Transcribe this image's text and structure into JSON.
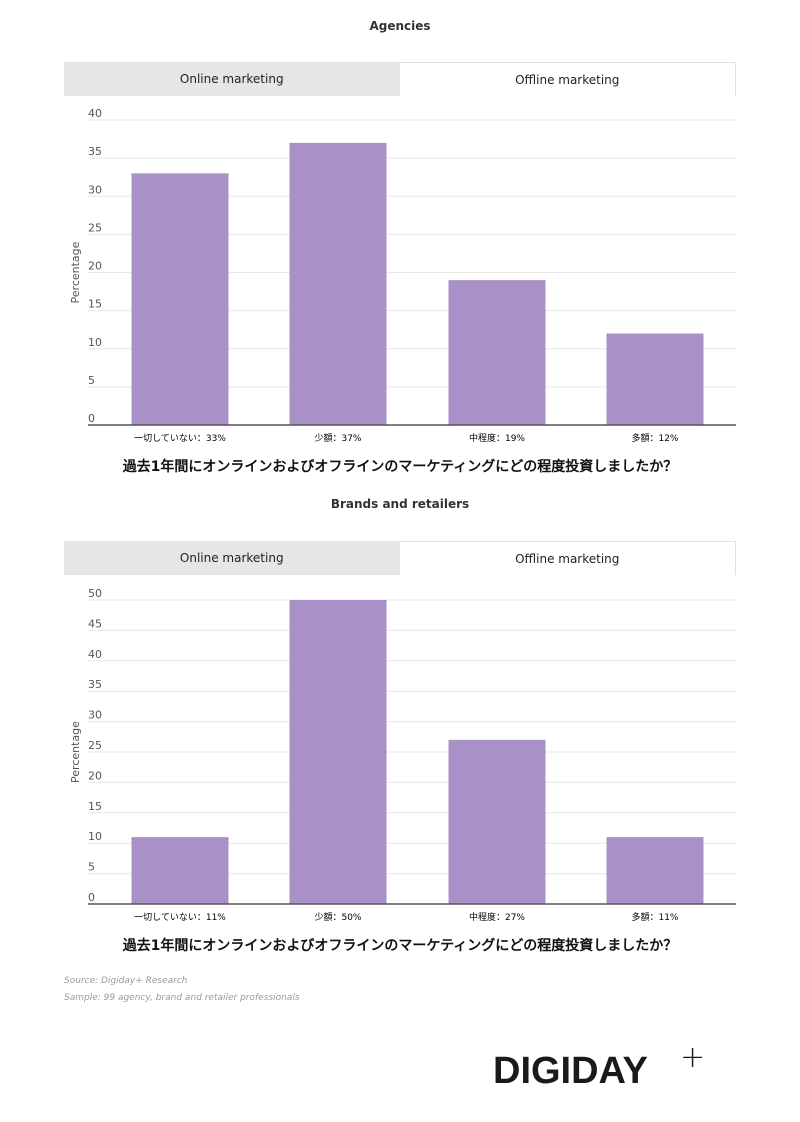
{
  "chart_data": [
    {
      "type": "bar",
      "title": "Agencies",
      "tabs": [
        "Online marketing",
        "Offline marketing"
      ],
      "active_tab": "Offline marketing",
      "categories": [
        "一切していない：33%",
        "少額：37%",
        "中程度：19%",
        "多額：12%"
      ],
      "values": [
        33,
        37,
        19,
        12
      ],
      "ylabel": "Percentage",
      "xlabel": "過去1年間にオンラインおよびオフラインのマーケティングにどの程度投資しましたか？",
      "ylim": [
        0,
        40
      ],
      "yticks": [
        0,
        5,
        10,
        15,
        20,
        25,
        30,
        35,
        40
      ],
      "grid": true
    },
    {
      "type": "bar",
      "title": "Brands and retailers",
      "tabs": [
        "Online marketing",
        "Offline marketing"
      ],
      "active_tab": "Offline marketing",
      "categories": [
        "一切していない：11%",
        "少額：50%",
        "中程度：27%",
        "多額：11%"
      ],
      "values": [
        11,
        50,
        27,
        11
      ],
      "ylabel": "Percentage",
      "xlabel": "過去1年間にオンラインおよびオフラインのマーケティングにどの程度投資しましたか？",
      "ylim": [
        0,
        50
      ],
      "yticks": [
        0,
        5,
        10,
        15,
        20,
        25,
        30,
        35,
        40,
        45,
        50
      ],
      "grid": true
    }
  ],
  "colors": {
    "bar": "#a990c6",
    "grid": "#e8e8e8",
    "axis": "#555555"
  },
  "footer": {
    "source": "Source: Digiday+ Research",
    "sample": "Sample: 99 agency, brand and retailer professionals"
  },
  "logo": {
    "text": "DIGIDAY",
    "plus": "+"
  }
}
